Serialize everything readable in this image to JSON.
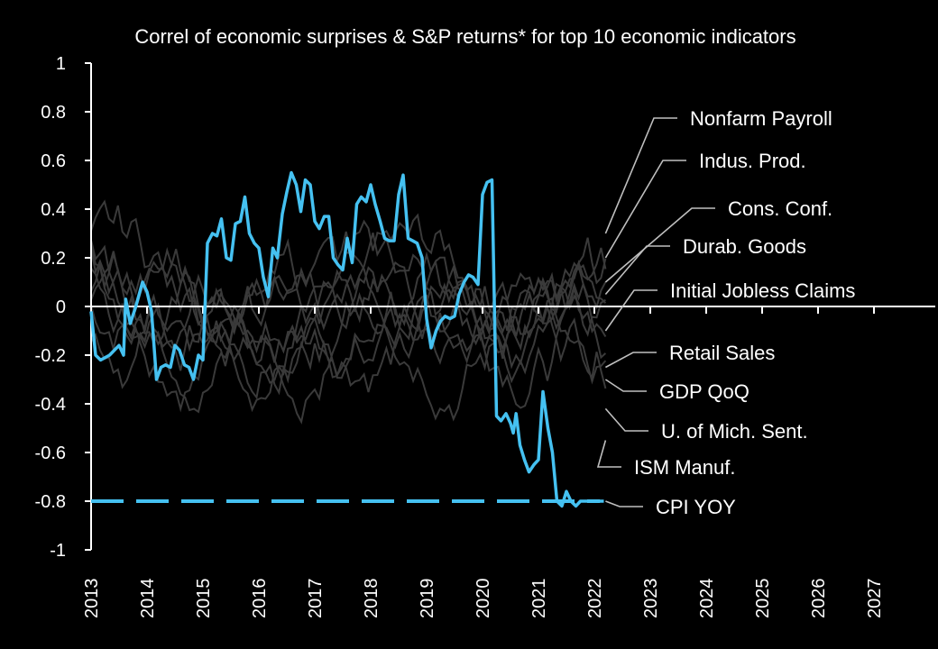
{
  "chart_data": {
    "type": "line",
    "title": "Correl of economic surprises & S&P returns* for top 10 economic indicators",
    "ylim": [
      -1,
      1
    ],
    "xlim": [
      2013,
      2028
    ],
    "y_ticks": [
      "1",
      "0.8",
      "0.6",
      "0.4",
      "0.2",
      "0",
      "-0.2",
      "-0.4",
      "-0.6",
      "-0.8",
      "-1"
    ],
    "x_ticks": [
      "2013",
      "2014",
      "2015",
      "2016",
      "2017",
      "2018",
      "2019",
      "2020",
      "2021",
      "2022",
      "2023",
      "2024",
      "2025",
      "2026",
      "2027"
    ],
    "colors": {
      "highlight": "#45c1f1",
      "background_series": "#3a3a3a",
      "axis": "#ffffff",
      "leader": "#bfbfbf"
    },
    "labels": [
      {
        "name": "Nonfarm Payroll",
        "end_value": 0.3
      },
      {
        "name": "Indus. Prod.",
        "end_value": 0.2
      },
      {
        "name": "Cons. Conf.",
        "end_value": 0.1
      },
      {
        "name": "Durab. Goods",
        "end_value": 0.05
      },
      {
        "name": "Initial Jobless Claims",
        "end_value": -0.1
      },
      {
        "name": "Retail Sales",
        "end_value": -0.25
      },
      {
        "name": "GDP QoQ",
        "end_value": -0.3
      },
      {
        "name": "U. of Mich. Sent.",
        "end_value": -0.42
      },
      {
        "name": "ISM Manuf.",
        "end_value": -0.55
      },
      {
        "name": "CPI YOY",
        "end_value": -0.8
      }
    ],
    "highlight_series": {
      "name": "CPI YOY",
      "x": [
        2013.0,
        2013.08,
        2013.17,
        2013.33,
        2013.5,
        2013.58,
        2013.62,
        2013.7,
        2013.8,
        2013.92,
        2014.0,
        2014.08,
        2014.17,
        2014.25,
        2014.33,
        2014.42,
        2014.5,
        2014.58,
        2014.67,
        2014.75,
        2014.83,
        2014.92,
        2015.0,
        2015.08,
        2015.17,
        2015.25,
        2015.33,
        2015.42,
        2015.5,
        2015.58,
        2015.67,
        2015.75,
        2015.83,
        2015.92,
        2016.0,
        2016.08,
        2016.17,
        2016.25,
        2016.33,
        2016.42,
        2016.5,
        2016.58,
        2016.67,
        2016.75,
        2016.83,
        2016.92,
        2017.0,
        2017.08,
        2017.17,
        2017.25,
        2017.33,
        2017.42,
        2017.5,
        2017.58,
        2017.67,
        2017.75,
        2017.83,
        2017.92,
        2018.0,
        2018.08,
        2018.17,
        2018.25,
        2018.33,
        2018.42,
        2018.5,
        2018.58,
        2018.67,
        2018.75,
        2018.83,
        2018.92,
        2019.0,
        2019.08,
        2019.17,
        2019.25,
        2019.33,
        2019.42,
        2019.5,
        2019.58,
        2019.67,
        2019.75,
        2019.83,
        2019.92,
        2020.0,
        2020.08,
        2020.17,
        2020.25,
        2020.33,
        2020.42,
        2020.5,
        2020.55,
        2020.6,
        2020.67,
        2020.75,
        2020.83,
        2020.92,
        2021.0,
        2021.08,
        2021.17,
        2021.25,
        2021.33,
        2021.42,
        2021.5,
        2021.58,
        2021.67,
        2021.75,
        2021.83,
        2021.92,
        2022.0,
        2022.08,
        2022.17
      ],
      "values": [
        -0.02,
        -0.2,
        -0.22,
        -0.2,
        -0.16,
        -0.2,
        0.03,
        -0.07,
        0.0,
        0.1,
        0.06,
        -0.02,
        -0.3,
        -0.25,
        -0.24,
        -0.25,
        -0.16,
        -0.18,
        -0.24,
        -0.25,
        -0.3,
        -0.2,
        -0.22,
        0.26,
        0.3,
        0.29,
        0.36,
        0.2,
        0.19,
        0.34,
        0.35,
        0.45,
        0.3,
        0.26,
        0.24,
        0.12,
        0.04,
        0.24,
        0.2,
        0.38,
        0.47,
        0.55,
        0.5,
        0.39,
        0.52,
        0.5,
        0.35,
        0.32,
        0.37,
        0.37,
        0.2,
        0.17,
        0.15,
        0.28,
        0.18,
        0.42,
        0.45,
        0.43,
        0.5,
        0.42,
        0.35,
        0.28,
        0.27,
        0.27,
        0.46,
        0.54,
        0.28,
        0.27,
        0.26,
        0.2,
        -0.05,
        -0.17,
        -0.1,
        -0.06,
        -0.04,
        -0.05,
        -0.04,
        0.05,
        0.1,
        0.13,
        0.12,
        0.09,
        0.46,
        0.51,
        0.52,
        -0.45,
        -0.47,
        -0.44,
        -0.48,
        -0.52,
        -0.44,
        -0.57,
        -0.63,
        -0.68,
        -0.65,
        -0.63,
        -0.35,
        -0.5,
        -0.6,
        -0.8,
        -0.82,
        -0.76,
        -0.8,
        -0.82,
        -0.8,
        -0.8,
        -0.8,
        -0.8,
        -0.8,
        -0.8
      ]
    },
    "forecast_line": {
      "value": -0.8,
      "x_start": 2013,
      "x_end": 2022.1,
      "style": "dashed"
    }
  }
}
